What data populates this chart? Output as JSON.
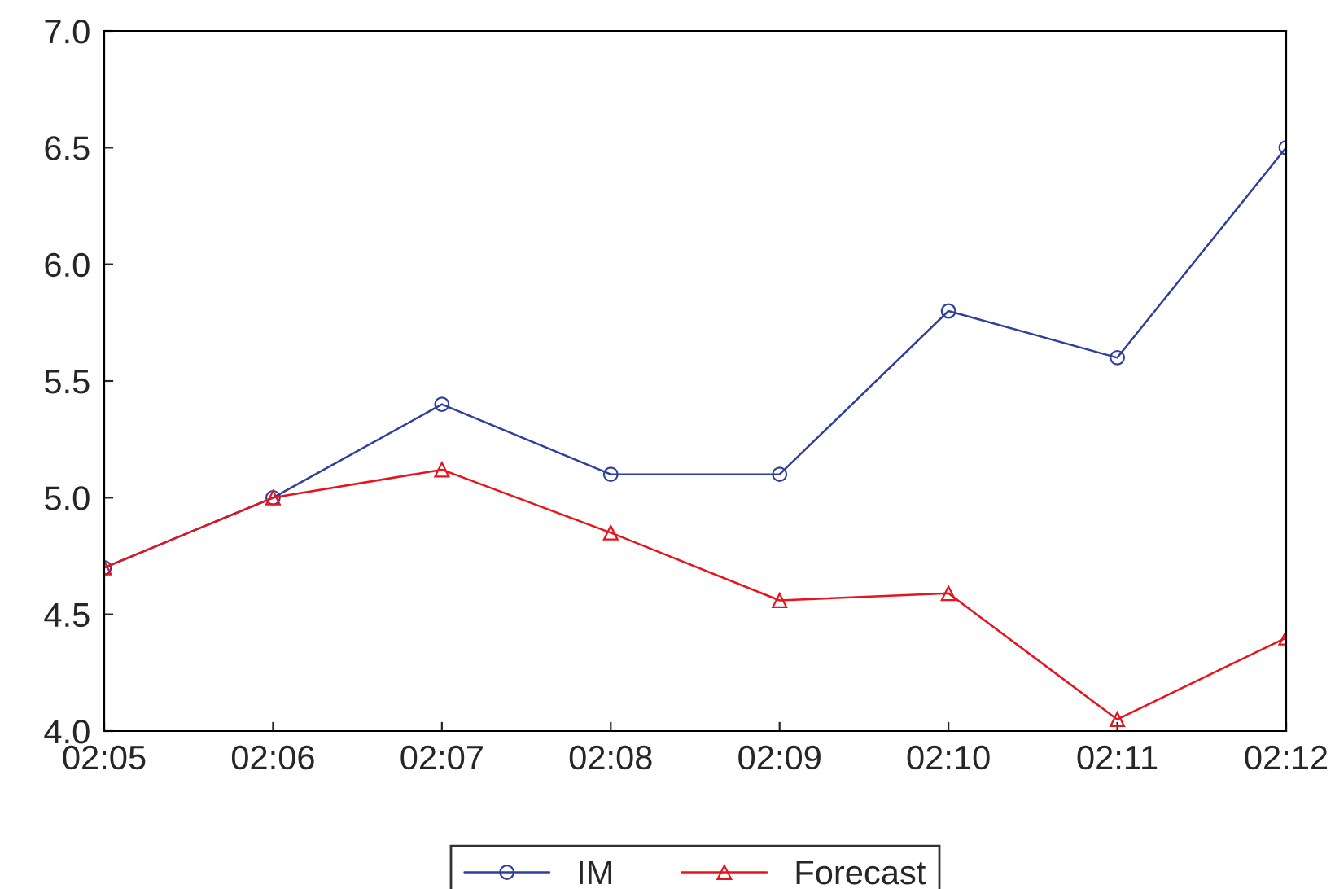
{
  "chart_data": {
    "type": "line",
    "categories": [
      "02:05",
      "02:06",
      "02:07",
      "02:08",
      "02:09",
      "02:10",
      "02:11",
      "02:12"
    ],
    "series": [
      {
        "name": "IM",
        "color": "#2e3f9e",
        "marker": "circle",
        "values": [
          4.7,
          5.0,
          5.4,
          5.1,
          5.1,
          5.8,
          5.6,
          6.5
        ]
      },
      {
        "name": "Forecast",
        "color": "#e8141c",
        "marker": "triangle",
        "values": [
          4.7,
          5.0,
          5.12,
          4.85,
          4.56,
          4.59,
          4.05,
          4.4
        ]
      }
    ],
    "ylim": [
      4.0,
      7.0
    ],
    "yticks": [
      {
        "value": 4.0,
        "label": "4.0"
      },
      {
        "value": 4.5,
        "label": "4.5"
      },
      {
        "value": 5.0,
        "label": "5.0"
      },
      {
        "value": 5.5,
        "label": "5.5"
      },
      {
        "value": 6.0,
        "label": "6.0"
      },
      {
        "value": 6.5,
        "label": "6.5"
      },
      {
        "value": 7.0,
        "label": "7.0"
      }
    ],
    "grid": false,
    "legend": "bottom",
    "line_style": "solid"
  }
}
